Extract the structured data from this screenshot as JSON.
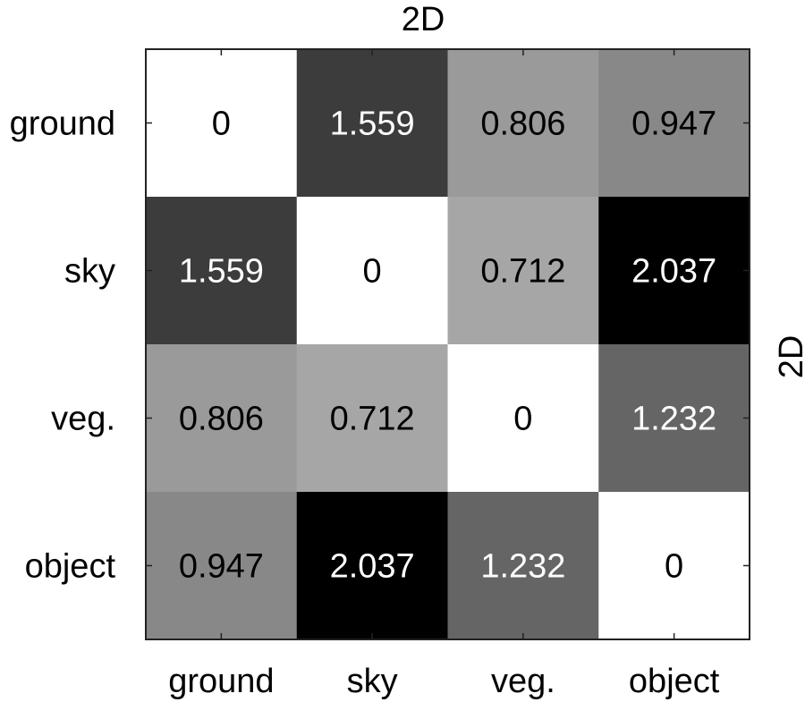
{
  "chart_data": {
    "type": "heatmap",
    "title": "2D",
    "right_label": "2D",
    "xlabel": "",
    "ylabel": "",
    "x_categories": [
      "ground",
      "sky",
      "veg.",
      "object"
    ],
    "y_categories": [
      "ground",
      "sky",
      "veg.",
      "object"
    ],
    "values": [
      [
        0,
        1.559,
        0.806,
        0.947
      ],
      [
        1.559,
        0,
        0.712,
        2.037
      ],
      [
        0.806,
        0.712,
        0,
        1.232
      ],
      [
        0.947,
        2.037,
        1.232,
        0
      ]
    ],
    "labels": [
      [
        "0",
        "1.559",
        "0.806",
        "0.947"
      ],
      [
        "1.559",
        "0",
        "0.712",
        "2.037"
      ],
      [
        "0.806",
        "0.712",
        "0",
        "1.232"
      ],
      [
        "0.947",
        "2.037",
        "1.232",
        "0"
      ]
    ],
    "colormap": "gray-reversed",
    "value_range": [
      0,
      2.037
    ],
    "grid": false,
    "legend": "none"
  }
}
